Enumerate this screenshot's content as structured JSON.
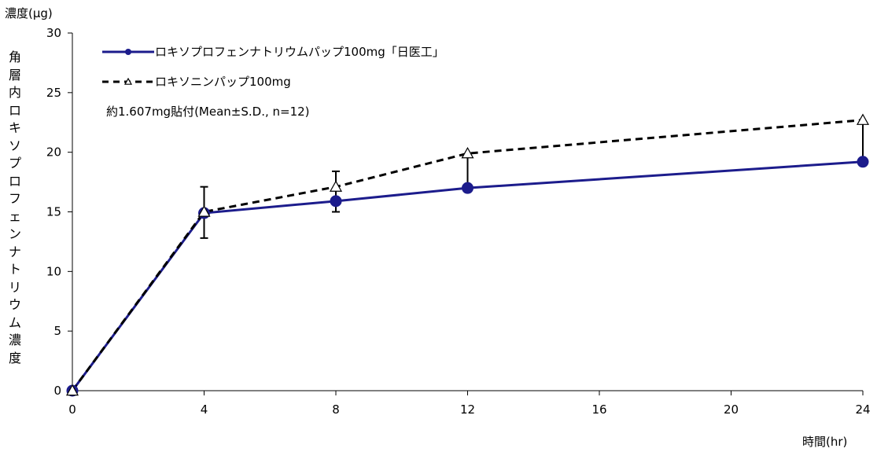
{
  "chart_data": {
    "type": "line",
    "ylabel_unit": "濃度(μg)",
    "ylabel": "角層内ロキソプロフェンナトリウム濃度",
    "xlabel": "時間(hr)",
    "x": [
      0,
      4,
      8,
      12,
      24
    ],
    "xticks": [
      "0",
      "4",
      "8",
      "12",
      "16",
      "20",
      "24"
    ],
    "xlim": [
      0,
      24
    ],
    "yticks": [
      "0",
      "5",
      "10",
      "15",
      "20",
      "25",
      "30"
    ],
    "ylim": [
      0,
      30
    ],
    "grid": false,
    "legend_position": "top-left",
    "series": [
      {
        "name": "ロキソプロフェンナトリウムパップ100mg「日医工」",
        "values": [
          0,
          14.9,
          15.9,
          17.0,
          19.2
        ],
        "sd": [
          0,
          0,
          0.9,
          0,
          0
        ],
        "style": "solid",
        "marker": "circle",
        "color": "#1c1c8c"
      },
      {
        "name": "ロキソニンパップ100mg",
        "values": [
          0,
          15.0,
          17.1,
          19.9,
          22.7
        ],
        "sd": [
          0,
          2.1,
          1.3,
          0,
          0
        ],
        "style": "dashed",
        "marker": "triangle",
        "color": "#000000"
      }
    ],
    "lower_bars": [
      {
        "x": 4,
        "low": 12.8
      },
      {
        "x": 8,
        "low": 15.0
      },
      {
        "x": 12,
        "low": 17.1
      },
      {
        "x": 24,
        "low": 19.2
      }
    ],
    "upper_bars": [
      {
        "x": 12,
        "high": 19.9
      },
      {
        "x": 24,
        "high": 22.7
      }
    ],
    "annotation": "約1.607mg貼付(Mean±S.D., n=12)"
  }
}
